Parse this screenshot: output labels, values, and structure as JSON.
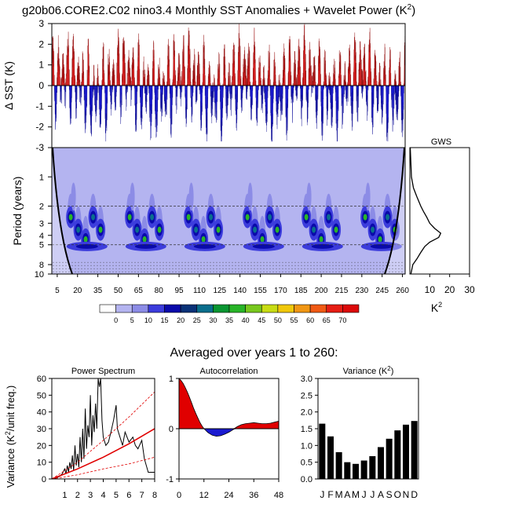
{
  "title": "g20b06.CORE2.C02 nino3.4 Monthly SST Anomalies + Wavelet Power (K",
  "title_sup": "2",
  "title_close": ")",
  "subtitle": "Averaged over years 1 to 260:",
  "colors": {
    "positive": "#d42020",
    "negative": "#1a1acc",
    "power_bg": "#b4b4f0",
    "frame": "#000000"
  },
  "chart_data": [
    {
      "id": "sst-timeseries",
      "type": "area",
      "title": "",
      "ylabel": "Δ SST (K)",
      "ylim": [
        -3,
        3
      ],
      "yticks": [
        "-3",
        "-2",
        "-1",
        "0",
        "1",
        "2",
        "3"
      ],
      "xlim": [
        0,
        262
      ],
      "series": [
        {
          "name": "SST anomaly",
          "description": "monthly nino3.4 anomalies, positive red, negative blue, peaks to ~3 K, troughs to ~-2.5 K"
        }
      ]
    },
    {
      "id": "wavelet-power",
      "type": "heatmap",
      "ylabel": "Period (years)",
      "yticks": [
        "1",
        "2",
        "3",
        "4",
        "5",
        "8",
        "10"
      ],
      "ytick_values": [
        1,
        2,
        3,
        4,
        5,
        8,
        10
      ],
      "ylim": [
        0.5,
        10
      ],
      "xticks": [
        "5",
        "20",
        "35",
        "50",
        "65",
        "80",
        "95",
        "110",
        "125",
        "140",
        "155",
        "170",
        "185",
        "200",
        "215",
        "230",
        "245",
        "260"
      ],
      "xtick_values": [
        5,
        20,
        35,
        50,
        65,
        80,
        95,
        110,
        125,
        140,
        155,
        170,
        185,
        200,
        215,
        230,
        245,
        260
      ],
      "xlim": [
        1,
        262
      ],
      "dashed_periods": [
        2,
        5
      ],
      "cone_of_influence": true,
      "colorbar": {
        "labels": [
          "0",
          "5",
          "10",
          "15",
          "20",
          "25",
          "30",
          "35",
          "40",
          "45",
          "50",
          "55",
          "60",
          "65",
          "70"
        ],
        "colors": [
          "#ffffff",
          "#b4b4f0",
          "#8c8ce6",
          "#3c3cdc",
          "#0a0aaa",
          "#0a3278",
          "#0a6e8c",
          "#0a9632",
          "#28b428",
          "#78c81e",
          "#c8dc14",
          "#f0c80a",
          "#f09614",
          "#f05a14",
          "#e61e14",
          "#dc0a0a"
        ]
      }
    },
    {
      "id": "global-wavelet-spectrum",
      "type": "line",
      "title": "GWS",
      "xlabel": "K",
      "xlabel_sup": "2",
      "xticks": [
        "10",
        "20",
        "30"
      ],
      "xtick_values": [
        10,
        20,
        30
      ],
      "xlim": [
        0,
        30
      ],
      "period": [
        0.5,
        1,
        1.3,
        1.6,
        2,
        2.3,
        2.6,
        3,
        3.4,
        3.8,
        4.2,
        4.7,
        5.2,
        6,
        7,
        8,
        10
      ],
      "power": [
        0.2,
        0.8,
        1.8,
        3.5,
        5.5,
        7,
        8.5,
        10,
        12.5,
        15.5,
        14.5,
        10,
        7.5,
        5.5,
        3.5,
        1.5,
        0.5
      ]
    },
    {
      "id": "power-spectrum",
      "type": "line",
      "title": "Power Spectrum",
      "ylabel": "Variance (K",
      "ylabel_sup": "2",
      "ylabel_close": "/unit freq.)",
      "ylim": [
        0,
        60
      ],
      "xlim": [
        0,
        8
      ],
      "yticks": [
        "0",
        "10",
        "20",
        "30",
        "40",
        "50",
        "60"
      ],
      "ytick_values": [
        0,
        10,
        20,
        30,
        40,
        50,
        60
      ],
      "xticks": [
        "1",
        "2",
        "3",
        "4",
        "5",
        "6",
        "7",
        "8"
      ],
      "xtick_values": [
        1,
        2,
        3,
        4,
        5,
        6,
        7,
        8
      ],
      "series": [
        {
          "name": "spectrum",
          "x": [
            0,
            0.3,
            0.6,
            0.8,
            1.0,
            1.1,
            1.2,
            1.3,
            1.4,
            1.5,
            1.6,
            1.7,
            1.8,
            1.9,
            2.0,
            2.1,
            2.2,
            2.3,
            2.4,
            2.5,
            2.6,
            2.7,
            2.8,
            2.9,
            3.0,
            3.1,
            3.2,
            3.3,
            3.4,
            3.5,
            3.6,
            3.7,
            3.8,
            3.9,
            4.0,
            4.2,
            4.4,
            4.6,
            4.8,
            5.0,
            5.1,
            5.3,
            5.5,
            5.7,
            6.0,
            6.3,
            6.5,
            6.7,
            7.0,
            7.2,
            7.5,
            8.0
          ],
          "y": [
            0,
            0.5,
            1.5,
            3,
            6,
            3,
            8,
            4,
            10,
            6,
            14,
            5,
            20,
            8,
            15,
            7,
            25,
            10,
            30,
            12,
            42,
            18,
            32,
            25,
            50,
            20,
            38,
            28,
            45,
            30,
            60,
            55,
            60,
            35,
            25,
            20,
            22,
            28,
            35,
            44,
            30,
            25,
            20,
            28,
            22,
            25,
            20,
            18,
            23,
            12,
            4,
            4
          ]
        },
        {
          "name": "red-noise",
          "x": [
            0,
            2,
            4,
            6,
            8
          ],
          "y": [
            0,
            6,
            13,
            21,
            30
          ]
        },
        {
          "name": "upper-confidence",
          "x": [
            0,
            2,
            4,
            6,
            8
          ],
          "y": [
            0,
            10,
            23,
            37,
            52
          ]
        },
        {
          "name": "lower-confidence",
          "x": [
            0,
            2,
            4,
            6,
            8
          ],
          "y": [
            0,
            2.5,
            6,
            9,
            13
          ]
        }
      ]
    },
    {
      "id": "autocorrelation",
      "type": "area",
      "title": "Autocorrelation",
      "ylim": [
        -1,
        1
      ],
      "xlim": [
        0,
        48
      ],
      "yticks": [
        "-1",
        "0",
        "1"
      ],
      "ytick_values": [
        -1,
        0,
        1
      ],
      "xticks": [
        "0",
        "12",
        "24",
        "36",
        "48"
      ],
      "xtick_values": [
        0,
        12,
        24,
        36,
        48
      ],
      "lag": [
        0,
        1,
        2,
        3,
        4,
        5,
        6,
        7,
        8,
        9,
        10,
        11,
        12,
        14,
        16,
        18,
        20,
        22,
        24,
        26,
        28,
        30,
        32,
        34,
        36,
        38,
        40,
        42,
        44,
        46,
        48
      ],
      "value": [
        1,
        0.96,
        0.9,
        0.82,
        0.73,
        0.63,
        0.52,
        0.41,
        0.31,
        0.22,
        0.13,
        0.06,
        0.0,
        -0.08,
        -0.13,
        -0.15,
        -0.14,
        -0.11,
        -0.07,
        -0.02,
        0.04,
        0.08,
        0.1,
        0.11,
        0.12,
        0.11,
        0.1,
        0.1,
        0.11,
        0.13,
        0.15
      ]
    },
    {
      "id": "monthly-variance",
      "type": "bar",
      "title": "Variance (K",
      "title_sup": "2",
      "title_close": ")",
      "categories": [
        "J",
        "F",
        "M",
        "A",
        "M",
        "J",
        "J",
        "A",
        "S",
        "O",
        "N",
        "D"
      ],
      "values": [
        1.65,
        1.27,
        0.8,
        0.5,
        0.45,
        0.55,
        0.68,
        0.95,
        1.2,
        1.45,
        1.62,
        1.73
      ],
      "ylim": [
        0,
        3.0
      ],
      "yticks": [
        "0.0",
        "0.5",
        "1.0",
        "1.5",
        "2.0",
        "2.5",
        "3.0"
      ],
      "ytick_values": [
        0,
        0.5,
        1.0,
        1.5,
        2.0,
        2.5,
        3.0
      ]
    }
  ]
}
